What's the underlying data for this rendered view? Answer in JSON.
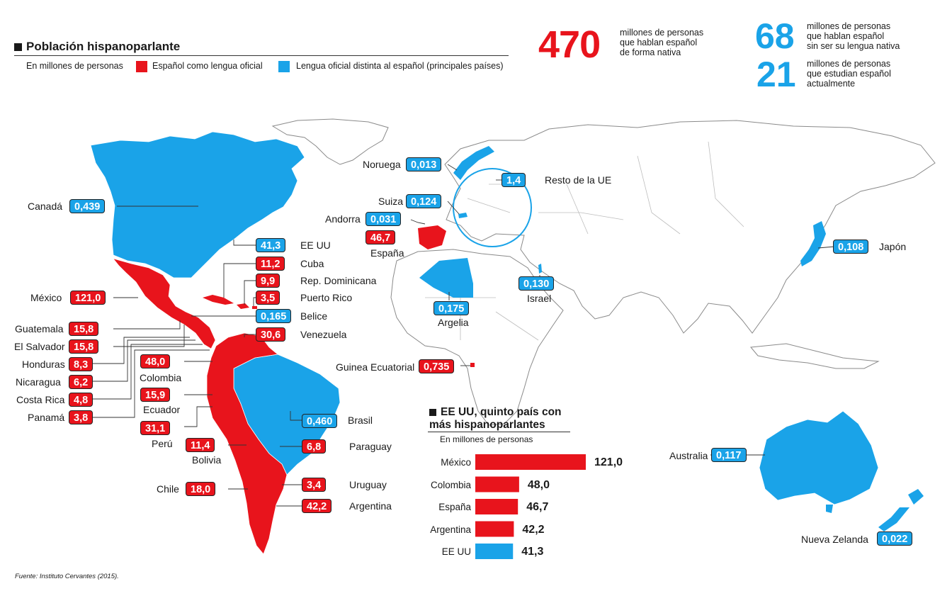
{
  "header": {
    "title": "Población hispanoparlante",
    "unit": "En millones de personas",
    "legend_red": "Español como lengua oficial",
    "legend_blue": "Lengua oficial distinta al español (principales países)"
  },
  "stats": {
    "s1_value": "470",
    "s1_lines": [
      "millones de personas",
      "que hablan español",
      "de forma nativa"
    ],
    "s2_value": "68",
    "s2_lines": [
      "millones de personas",
      "que hablan español",
      "sin ser su lengua nativa"
    ],
    "s3_value": "21",
    "s3_lines": [
      "millones de personas",
      "que estudian español",
      "actualmente"
    ]
  },
  "colors": {
    "red": "#e8141c",
    "blue": "#1aa3e8",
    "outline": "#8a8a8a"
  },
  "map_labels": {
    "canada": {
      "name": "Canadá",
      "value": "0,439"
    },
    "eeuu": {
      "name": "EE UU",
      "value": "41,3"
    },
    "cuba": {
      "name": "Cuba",
      "value": "11,2"
    },
    "repdom": {
      "name": "Rep. Dominicana",
      "value": "9,9"
    },
    "puertorico": {
      "name": "Puerto Rico",
      "value": "3,5"
    },
    "belice": {
      "name": "Belice",
      "value": "0,165"
    },
    "venezuela": {
      "name": "Venezuela",
      "value": "30,6"
    },
    "mexico": {
      "name": "México",
      "value": "121,0"
    },
    "guatemala": {
      "name": "Guatemala",
      "value": "15,8"
    },
    "elsalvador": {
      "name": "El Salvador",
      "value": "15,8"
    },
    "honduras": {
      "name": "Honduras",
      "value": "8,3"
    },
    "nicaragua": {
      "name": "Nicaragua",
      "value": "6,2"
    },
    "costarica": {
      "name": "Costa Rica",
      "value": "4,8"
    },
    "panama": {
      "name": "Panamá",
      "value": "3,8"
    },
    "colombia": {
      "name": "Colombia",
      "value": "48,0"
    },
    "ecuador": {
      "name": "Ecuador",
      "value": "15,9"
    },
    "peru": {
      "name": "Perú",
      "value": "31,1"
    },
    "bolivia": {
      "name": "Bolivia",
      "value": "11,4"
    },
    "chile": {
      "name": "Chile",
      "value": "18,0"
    },
    "paraguay": {
      "name": "Paraguay",
      "value": "6,8"
    },
    "brasil": {
      "name": "Brasil",
      "value": "0,460"
    },
    "uruguay": {
      "name": "Uruguay",
      "value": "3,4"
    },
    "argentina": {
      "name": "Argentina",
      "value": "42,2"
    },
    "noruega": {
      "name": "Noruega",
      "value": "0,013"
    },
    "suiza": {
      "name": "Suiza",
      "value": "0,124"
    },
    "andorra": {
      "name": "Andorra",
      "value": "0,031"
    },
    "espana": {
      "name": "España",
      "value": "46,7"
    },
    "restoue": {
      "name": "Resto de la UE",
      "value": "1,4"
    },
    "israel": {
      "name": "Israel",
      "value": "0,130"
    },
    "argelia": {
      "name": "Argelia",
      "value": "0,175"
    },
    "guinea": {
      "name": "Guinea Ecuatorial",
      "value": "0,735"
    },
    "japon": {
      "name": "Japón",
      "value": "0,108"
    },
    "australia": {
      "name": "Australia",
      "value": "0,117"
    },
    "nz": {
      "name": "Nueva Zelanda",
      "value": "0,022"
    }
  },
  "bar_chart": {
    "title_line1": "EE UU, quinto país con",
    "title_line2": "más hispanoparlantes",
    "subtitle": "En millones de personas",
    "chart_data": {
      "type": "bar",
      "categories": [
        "México",
        "Colombia",
        "España",
        "Argentina",
        "EE UU"
      ],
      "values": [
        121.0,
        48.0,
        46.7,
        42.2,
        41.3
      ],
      "value_labels": [
        "121,0",
        "48,0",
        "46,7",
        "42,2",
        "41,3"
      ],
      "colors": [
        "#e8141c",
        "#e8141c",
        "#e8141c",
        "#e8141c",
        "#1aa3e8"
      ]
    }
  },
  "source": "Fuente: Instituto Cervantes (2015)."
}
